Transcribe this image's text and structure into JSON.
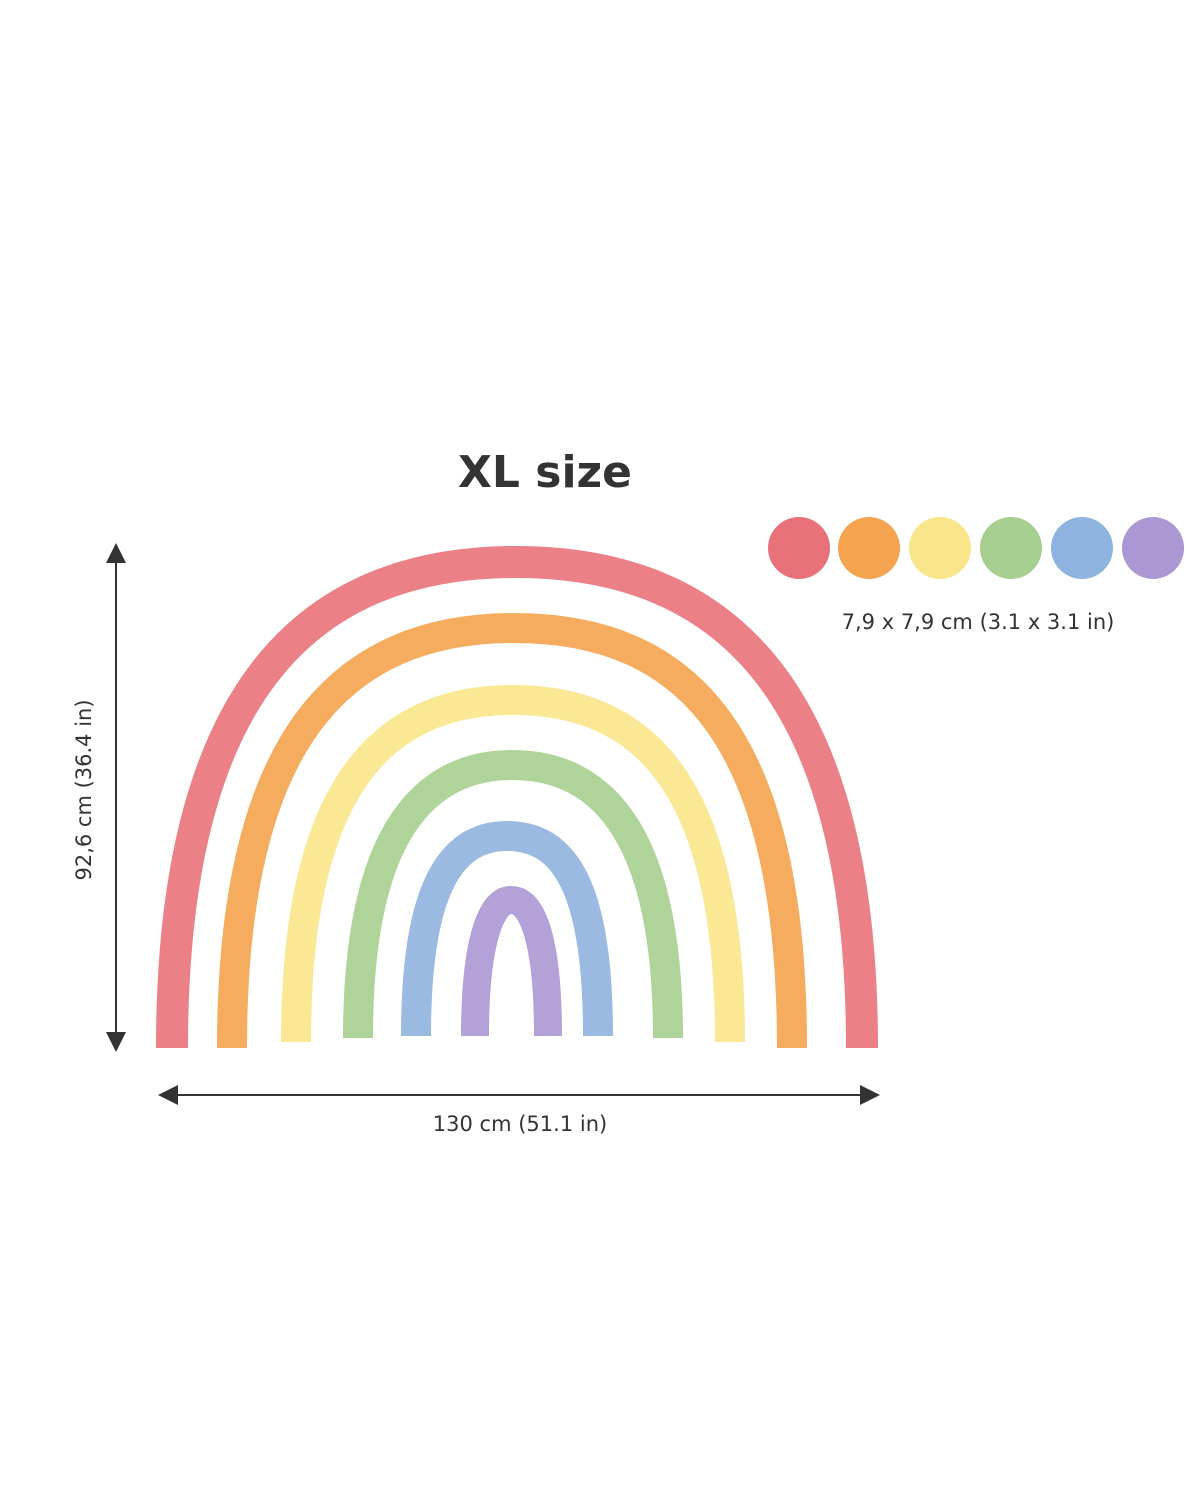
{
  "title": "XL size",
  "height_label": "92,6 cm (36.4 in)",
  "width_label": "130 cm (51.1 in)",
  "dots_label": "7,9 x 7,9 cm (3.1 x 3.1 in)"
}
